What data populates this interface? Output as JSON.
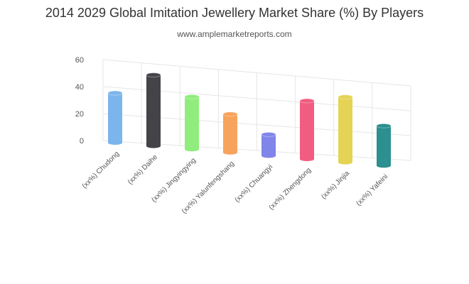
{
  "chart_data": {
    "type": "bar",
    "title": "2014 2029 Global Imitation Jewellery Market Share (%) By Players",
    "subtitle": "www.amplemarketreports.com",
    "xlabel": "",
    "ylabel": "",
    "ylim": [
      0,
      60
    ],
    "yticks": [
      "0",
      "20",
      "40",
      "60"
    ],
    "grid": true,
    "categories": [
      "(xx%) Chudong",
      "(xx%) Daihe",
      "(xx%) Jingyingying",
      "(xx%) Yalunfengshang",
      "(xx%) Chuangyi",
      "(xx%) Zhengdong",
      "(xx%) Jinjia",
      "(xx%) Yafeini"
    ],
    "values": [
      35,
      50,
      37,
      27,
      15,
      41,
      46,
      28
    ],
    "colors": [
      "#7cb5ec",
      "#434348",
      "#90ed7d",
      "#f7a35c",
      "#8085e9",
      "#f15c80",
      "#e4d354",
      "#2b908f"
    ]
  }
}
